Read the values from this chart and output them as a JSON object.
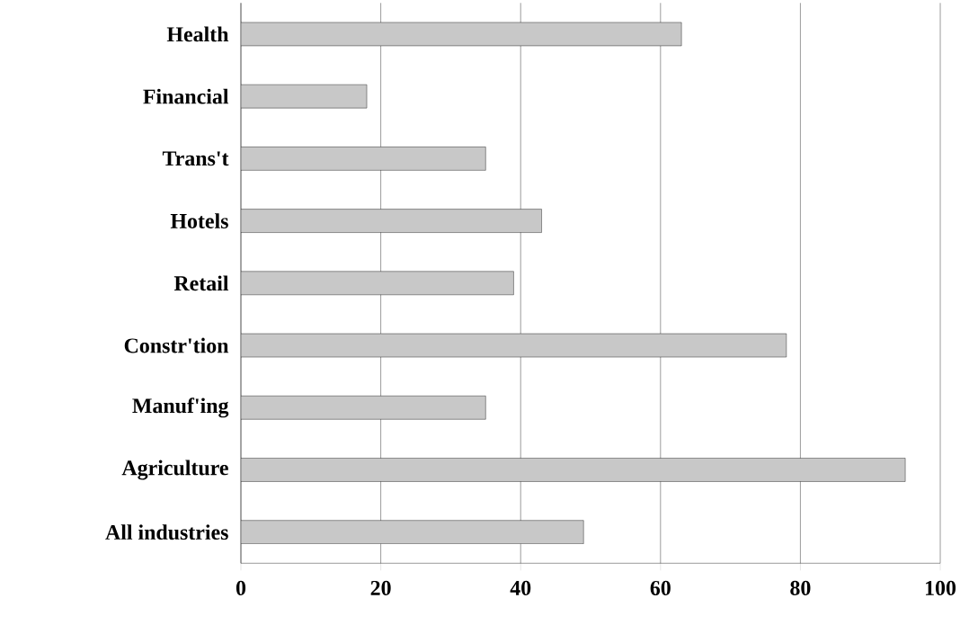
{
  "chart_data": {
    "type": "bar",
    "orientation": "horizontal",
    "categories": [
      "Health",
      "Financial",
      "Trans't",
      "Hotels",
      "Retail",
      "Constr'tion",
      "Manuf'ing",
      "Agriculture",
      "All industries"
    ],
    "values": [
      63,
      18,
      35,
      43,
      39,
      78,
      35,
      95,
      49
    ],
    "color": "#c8c8c8",
    "xlim": [
      0,
      100
    ],
    "xticks": [
      0,
      20,
      40,
      60,
      80,
      100
    ],
    "grid": "x"
  }
}
